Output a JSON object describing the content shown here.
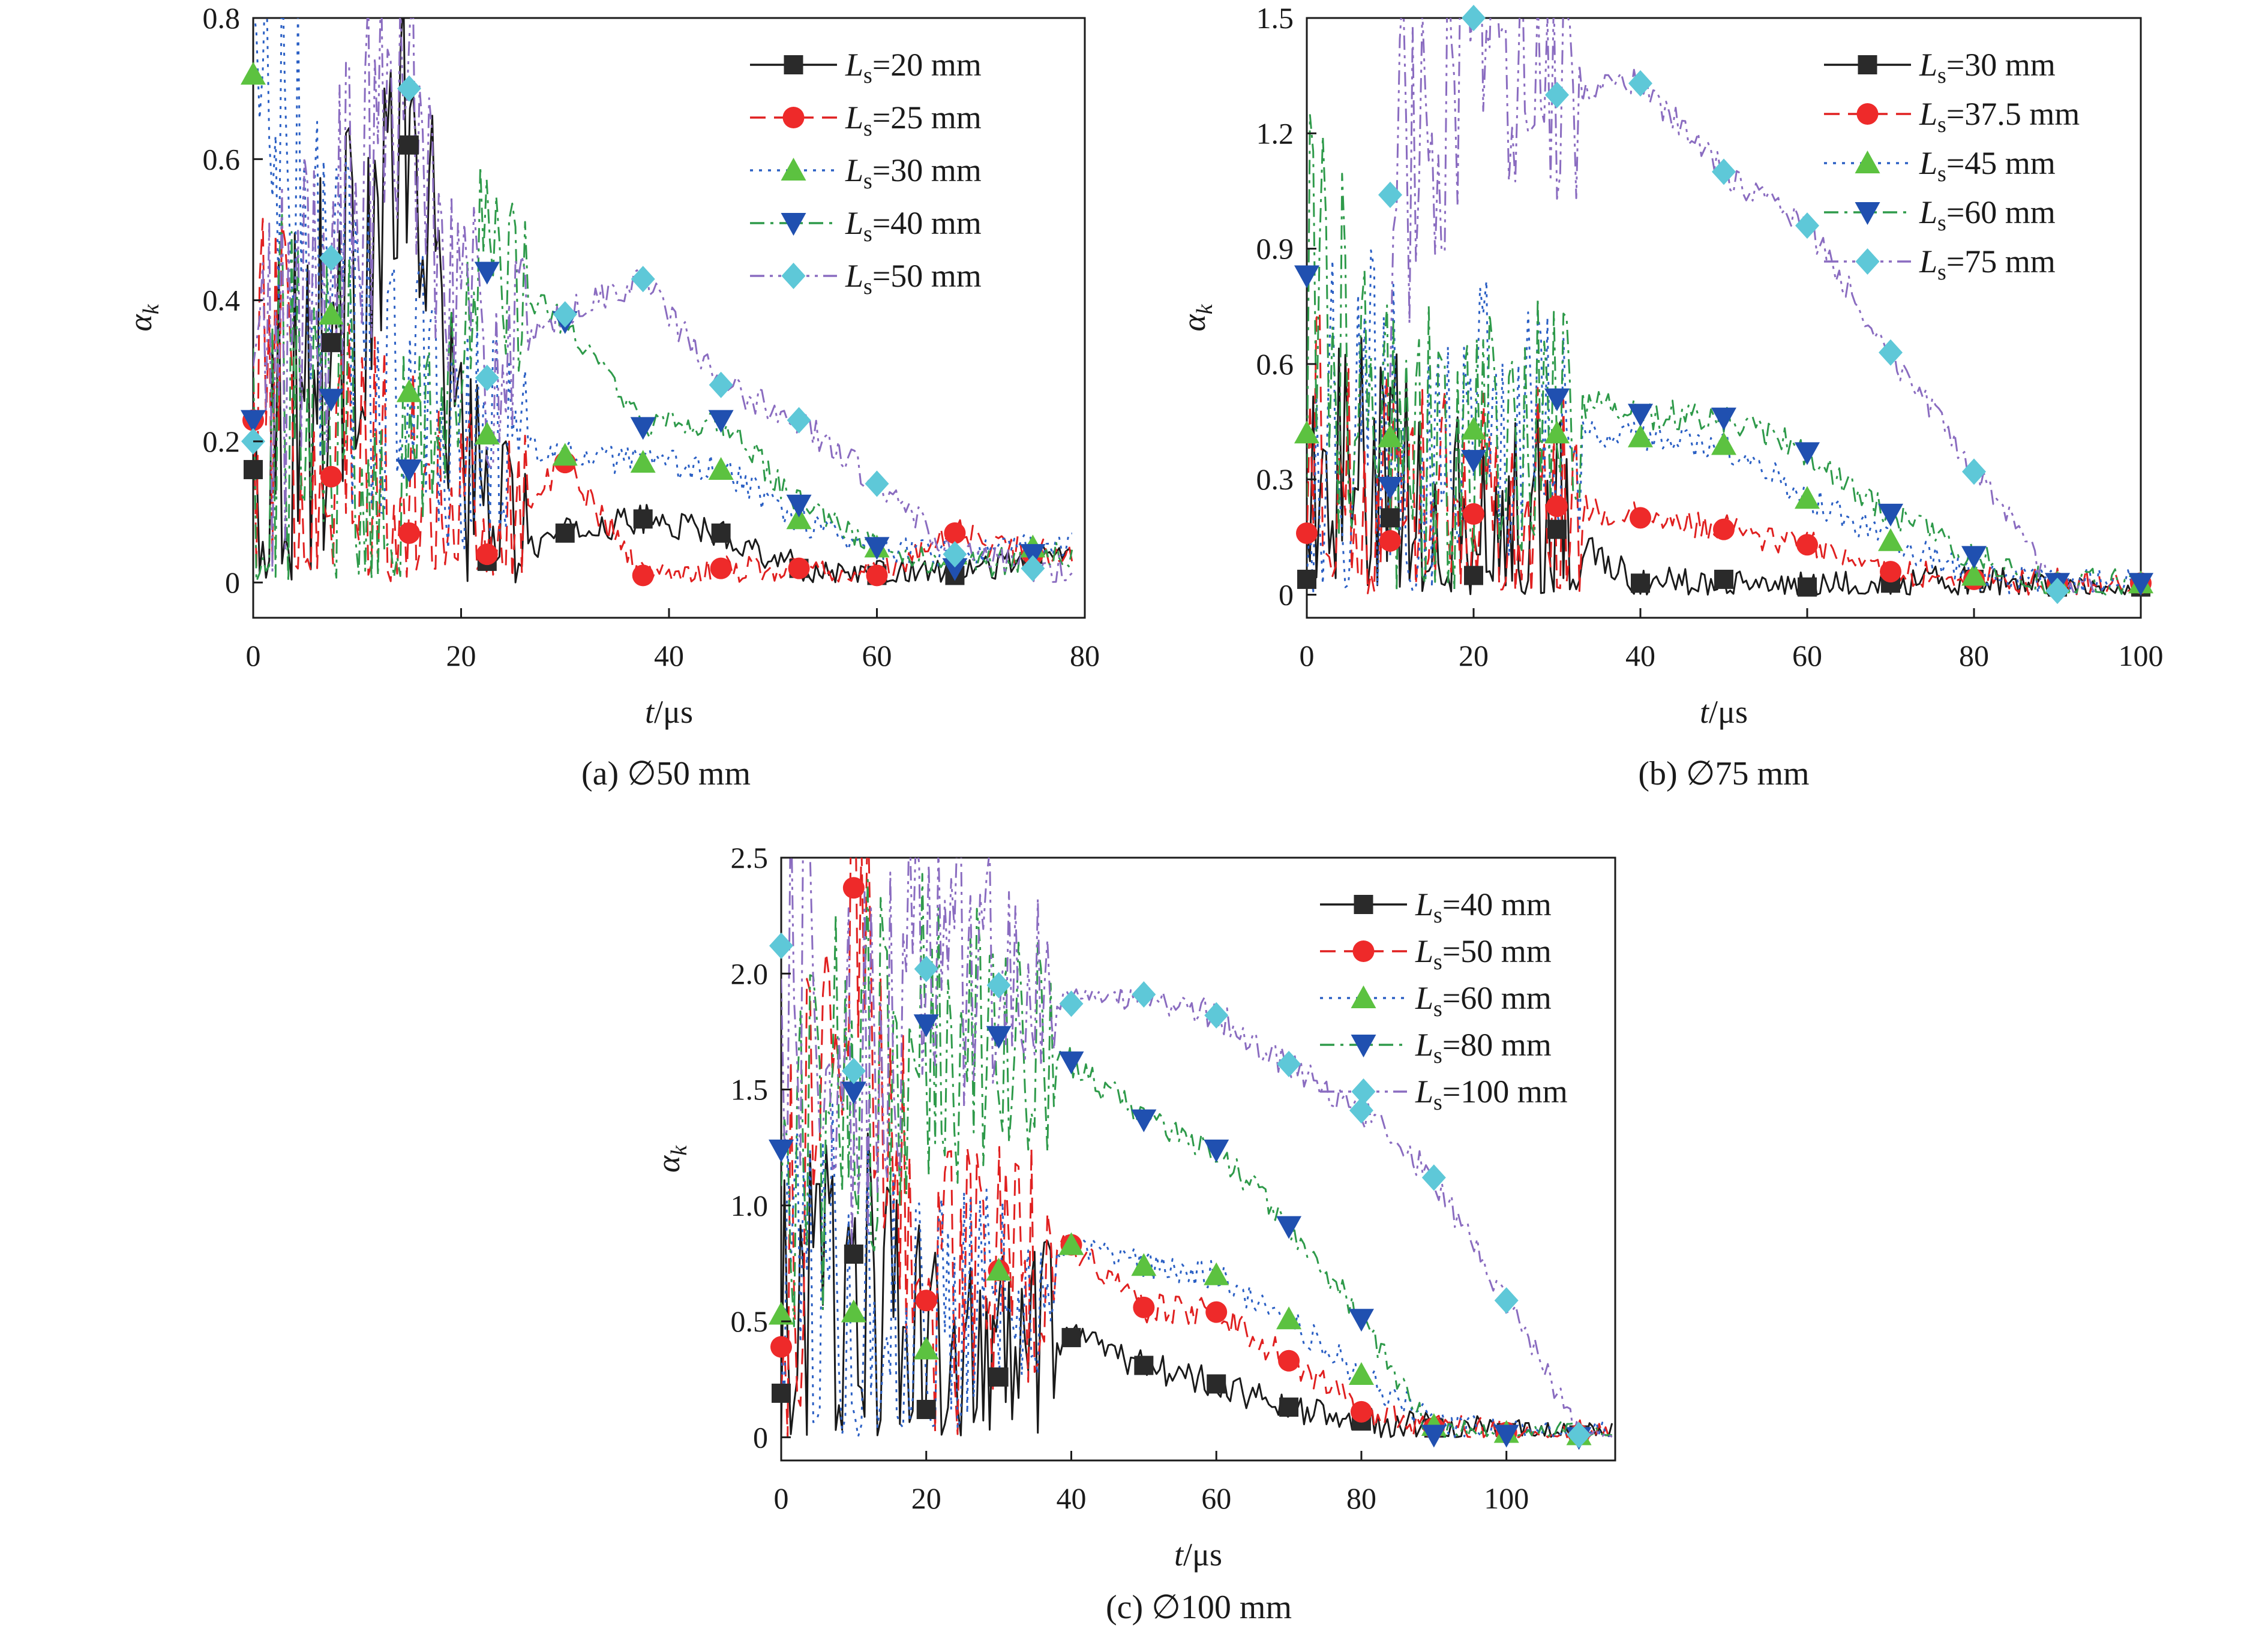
{
  "chart_data": [
    {
      "type": "line",
      "caption": "(a) ∅50 mm",
      "xlabel": "t/μs",
      "ylabel": "α_k",
      "xlim": [
        0,
        80
      ],
      "ylim": [
        -0.05,
        0.8
      ],
      "xticks": [
        0,
        20,
        40,
        60,
        80
      ],
      "yticks": [
        0,
        0.2,
        0.4,
        0.6,
        0.8
      ],
      "legend_position": "top-right",
      "series": [
        {
          "name": "L_s=20 mm",
          "legend_text": "=20 mm",
          "marker": "square",
          "line": "solid",
          "color": "#1a1a1a",
          "marker_fill": "#2a2a2a",
          "markers": [
            [
              0,
              0.16
            ],
            [
              7.5,
              0.34
            ],
            [
              15,
              0.62
            ],
            [
              22.5,
              0.03
            ],
            [
              30,
              0.07
            ],
            [
              37.5,
              0.09
            ],
            [
              45,
              0.07
            ],
            [
              52.5,
              0.02
            ],
            [
              60,
              0.01
            ],
            [
              67.5,
              0.01
            ],
            [
              75,
              0.04
            ]
          ]
        },
        {
          "name": "L_s=25 mm",
          "legend_text": "=25 mm",
          "marker": "circle",
          "line": "dash",
          "color": "#e02020",
          "marker_fill": "#ee2a2a",
          "markers": [
            [
              0,
              0.23
            ],
            [
              7.5,
              0.15
            ],
            [
              15,
              0.07
            ],
            [
              22.5,
              0.04
            ],
            [
              30,
              0.17
            ],
            [
              37.5,
              0.01
            ],
            [
              45,
              0.02
            ],
            [
              52.5,
              0.02
            ],
            [
              60,
              0.01
            ],
            [
              67.5,
              0.07
            ],
            [
              75,
              0.04
            ]
          ]
        },
        {
          "name": "L_s=30 mm",
          "legend_text": "=30 mm",
          "marker": "triangle-up",
          "line": "dot",
          "color": "#2a5fc4",
          "marker_fill": "#5cc240",
          "markers": [
            [
              0,
              0.72
            ],
            [
              7.5,
              0.38
            ],
            [
              15,
              0.27
            ],
            [
              22.5,
              0.21
            ],
            [
              30,
              0.18
            ],
            [
              37.5,
              0.17
            ],
            [
              45,
              0.16
            ],
            [
              52.5,
              0.09
            ],
            [
              60,
              0.05
            ],
            [
              67.5,
              0.04
            ],
            [
              75,
              0.05
            ]
          ]
        },
        {
          "name": "L_s=40 mm",
          "legend_text": "=40 mm",
          "marker": "triangle-down",
          "line": "dashdot",
          "color": "#2e9a4a",
          "marker_fill": "#2050b0",
          "markers": [
            [
              0,
              0.23
            ],
            [
              7.5,
              0.26
            ],
            [
              15,
              0.16
            ],
            [
              22.5,
              0.44
            ],
            [
              30,
              0.37
            ],
            [
              37.5,
              0.22
            ],
            [
              45,
              0.23
            ],
            [
              52.5,
              0.11
            ],
            [
              60,
              0.05
            ],
            [
              67.5,
              0.02
            ],
            [
              75,
              0.04
            ]
          ]
        },
        {
          "name": "L_s=50 mm",
          "legend_text": "=50 mm",
          "marker": "diamond",
          "line": "dashdotdot",
          "color": "#8a6cc0",
          "marker_fill": "#5ec8d8",
          "markers": [
            [
              0,
              0.2
            ],
            [
              7.5,
              0.46
            ],
            [
              15,
              0.7
            ],
            [
              22.5,
              0.29
            ],
            [
              30,
              0.38
            ],
            [
              37.5,
              0.43
            ],
            [
              45,
              0.28
            ],
            [
              52.5,
              0.23
            ],
            [
              60,
              0.14
            ],
            [
              67.5,
              0.04
            ],
            [
              75,
              0.02
            ]
          ]
        }
      ]
    },
    {
      "type": "line",
      "caption": "(b) ∅75 mm",
      "xlabel": "t/μs",
      "ylabel": "α_k",
      "xlim": [
        0,
        100
      ],
      "ylim": [
        -0.06,
        1.5
      ],
      "xticks": [
        0,
        20,
        40,
        60,
        80,
        100
      ],
      "yticks": [
        0,
        0.3,
        0.6,
        0.9,
        1.2,
        1.5
      ],
      "legend_position": "top-right",
      "series": [
        {
          "name": "L_s=30 mm",
          "legend_text": "=30 mm",
          "marker": "square",
          "line": "solid",
          "color": "#1a1a1a",
          "marker_fill": "#2a2a2a",
          "markers": [
            [
              0,
              0.04
            ],
            [
              10,
              0.2
            ],
            [
              20,
              0.05
            ],
            [
              30,
              0.17
            ],
            [
              40,
              0.03
            ],
            [
              50,
              0.04
            ],
            [
              60,
              0.02
            ],
            [
              70,
              0.03
            ],
            [
              80,
              0.04
            ],
            [
              90,
              0.02
            ],
            [
              100,
              0.02
            ]
          ]
        },
        {
          "name": "L_s=37.5 mm",
          "legend_text": "=37.5 mm",
          "marker": "circle",
          "line": "dash",
          "color": "#e02020",
          "marker_fill": "#ee2a2a",
          "markers": [
            [
              0,
              0.16
            ],
            [
              10,
              0.14
            ],
            [
              20,
              0.21
            ],
            [
              30,
              0.23
            ],
            [
              40,
              0.2
            ],
            [
              50,
              0.17
            ],
            [
              60,
              0.13
            ],
            [
              70,
              0.06
            ],
            [
              80,
              0.04
            ],
            [
              90,
              0.03
            ],
            [
              100,
              0.03
            ]
          ]
        },
        {
          "name": "L_s=45 mm",
          "legend_text": "=45 mm",
          "marker": "triangle-up",
          "line": "dot",
          "color": "#2a5fc4",
          "marker_fill": "#5cc240",
          "markers": [
            [
              0,
              0.42
            ],
            [
              10,
              0.41
            ],
            [
              20,
              0.43
            ],
            [
              30,
              0.42
            ],
            [
              40,
              0.41
            ],
            [
              50,
              0.39
            ],
            [
              60,
              0.25
            ],
            [
              70,
              0.14
            ],
            [
              80,
              0.05
            ],
            [
              90,
              0.03
            ],
            [
              100,
              0.03
            ]
          ]
        },
        {
          "name": "L_s=60 mm",
          "legend_text": "=60 mm",
          "marker": "triangle-down",
          "line": "dashdot",
          "color": "#2e9a4a",
          "marker_fill": "#2050b0",
          "markers": [
            [
              0,
              0.83
            ],
            [
              10,
              0.28
            ],
            [
              20,
              0.35
            ],
            [
              30,
              0.51
            ],
            [
              40,
              0.47
            ],
            [
              50,
              0.46
            ],
            [
              60,
              0.37
            ],
            [
              70,
              0.21
            ],
            [
              80,
              0.1
            ],
            [
              90,
              0.03
            ],
            [
              100,
              0.03
            ]
          ]
        },
        {
          "name": "L_s=75 mm",
          "legend_text": "=75 mm",
          "marker": "diamond",
          "line": "dashdotdot",
          "color": "#8a6cc0",
          "marker_fill": "#5ec8d8",
          "markers": [
            [
              10,
              1.04
            ],
            [
              20,
              1.5
            ],
            [
              30,
              1.3
            ],
            [
              40,
              1.33
            ],
            [
              50,
              1.1
            ],
            [
              60,
              0.96
            ],
            [
              70,
              0.63
            ],
            [
              80,
              0.32
            ],
            [
              90,
              0.01
            ]
          ]
        }
      ]
    },
    {
      "type": "line",
      "caption": "(c) ∅100 mm",
      "xlabel": "t/μs",
      "ylabel": "α_k",
      "xlim": [
        0,
        115
      ],
      "ylim": [
        -0.1,
        2.5
      ],
      "xticks": [
        0,
        20,
        40,
        60,
        80,
        100
      ],
      "yticks": [
        0,
        0.5,
        1.0,
        1.5,
        2.0,
        2.5
      ],
      "legend_position": "top-right",
      "series": [
        {
          "name": "L_s=40 mm",
          "legend_text": "=40 mm",
          "marker": "square",
          "line": "solid",
          "color": "#1a1a1a",
          "marker_fill": "#2a2a2a",
          "markers": [
            [
              0,
              0.19
            ],
            [
              10,
              0.79
            ],
            [
              20,
              0.12
            ],
            [
              30,
              0.26
            ],
            [
              40,
              0.43
            ],
            [
              50,
              0.31
            ],
            [
              60,
              0.23
            ],
            [
              70,
              0.13
            ],
            [
              80,
              0.07
            ],
            [
              90,
              0.04
            ],
            [
              100,
              0.02
            ],
            [
              110,
              0.01
            ]
          ]
        },
        {
          "name": "L_s=50 mm",
          "legend_text": "=50 mm",
          "marker": "circle",
          "line": "dash",
          "color": "#e02020",
          "marker_fill": "#ee2a2a",
          "markers": [
            [
              0,
              0.39
            ],
            [
              10,
              2.37
            ],
            [
              20,
              0.59
            ],
            [
              30,
              0.72
            ],
            [
              40,
              0.83
            ],
            [
              50,
              0.56
            ],
            [
              60,
              0.54
            ],
            [
              70,
              0.33
            ],
            [
              80,
              0.11
            ],
            [
              90,
              0.04
            ],
            [
              100,
              0.02
            ],
            [
              110,
              0.01
            ]
          ]
        },
        {
          "name": "L_s=60 mm",
          "legend_text": "=60 mm",
          "marker": "triangle-up",
          "line": "dot",
          "color": "#2a5fc4",
          "marker_fill": "#5cc240",
          "markers": [
            [
              0,
              0.53
            ],
            [
              10,
              0.54
            ],
            [
              20,
              0.38
            ],
            [
              30,
              0.72
            ],
            [
              40,
              0.83
            ],
            [
              50,
              0.74
            ],
            [
              60,
              0.7
            ],
            [
              70,
              0.51
            ],
            [
              80,
              0.27
            ],
            [
              90,
              0.05
            ],
            [
              100,
              0.02
            ],
            [
              110,
              0.01
            ]
          ]
        },
        {
          "name": "L_s=80 mm",
          "legend_text": "=80 mm",
          "marker": "triangle-down",
          "line": "dashdot",
          "color": "#2e9a4a",
          "marker_fill": "#2050b0",
          "markers": [
            [
              0,
              1.24
            ],
            [
              10,
              1.49
            ],
            [
              20,
              1.78
            ],
            [
              30,
              1.73
            ],
            [
              40,
              1.62
            ],
            [
              50,
              1.37
            ],
            [
              60,
              1.24
            ],
            [
              70,
              0.91
            ],
            [
              80,
              0.51
            ],
            [
              90,
              0.01
            ],
            [
              100,
              0.01
            ],
            [
              110,
              0.0
            ]
          ]
        },
        {
          "name": "L_s=100 mm",
          "legend_text": "=100 mm",
          "marker": "diamond",
          "line": "dashdotdot",
          "color": "#8a6cc0",
          "marker_fill": "#5ec8d8",
          "markers": [
            [
              0,
              2.12
            ],
            [
              10,
              1.58
            ],
            [
              20,
              2.02
            ],
            [
              30,
              1.95
            ],
            [
              40,
              1.87
            ],
            [
              50,
              1.91
            ],
            [
              60,
              1.82
            ],
            [
              70,
              1.61
            ],
            [
              80,
              1.41
            ],
            [
              90,
              1.12
            ],
            [
              100,
              0.59
            ],
            [
              110,
              0.01
            ]
          ]
        }
      ]
    }
  ]
}
